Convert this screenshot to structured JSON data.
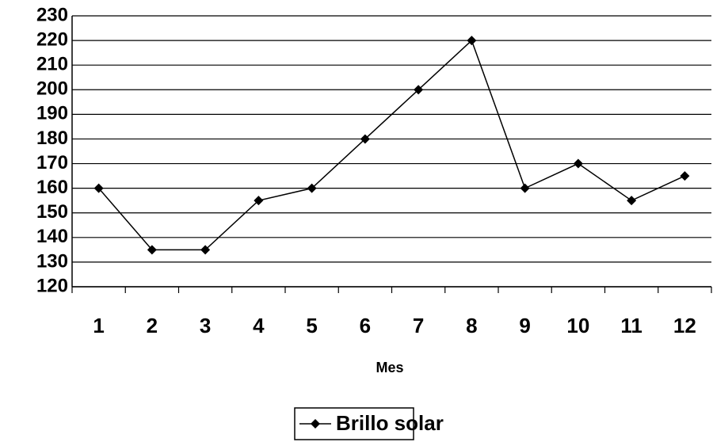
{
  "chart_data": {
    "type": "line",
    "x_label": "Mes",
    "categories": [
      "1",
      "2",
      "3",
      "4",
      "5",
      "6",
      "7",
      "8",
      "9",
      "10",
      "11",
      "12"
    ],
    "series": [
      {
        "name": "Brillo solar",
        "color": "#000000",
        "values": [
          160,
          135,
          135,
          155,
          160,
          180,
          200,
          220,
          160,
          170,
          155,
          165
        ]
      }
    ],
    "ylim": [
      120,
      230
    ],
    "yticks": [
      120,
      130,
      140,
      150,
      160,
      170,
      180,
      190,
      200,
      210,
      220,
      230
    ],
    "grid": true,
    "legend": "bottom"
  }
}
